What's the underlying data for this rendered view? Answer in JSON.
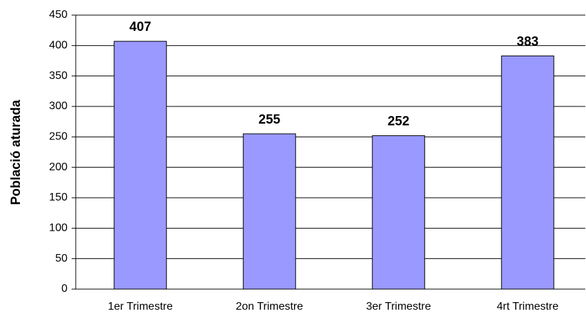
{
  "chart_data": {
    "type": "bar",
    "y_label": "Població aturada",
    "categories": [
      "1er Trimestre",
      "2on Trimestre",
      "3er Trimestre",
      "4rt Trimestre"
    ],
    "values": [
      407,
      255,
      252,
      383
    ],
    "color": "#9999ff",
    "ylim": [
      0,
      450
    ],
    "yticks": [
      0,
      50,
      100,
      150,
      200,
      250,
      300,
      350,
      400,
      450
    ],
    "grid": true
  }
}
